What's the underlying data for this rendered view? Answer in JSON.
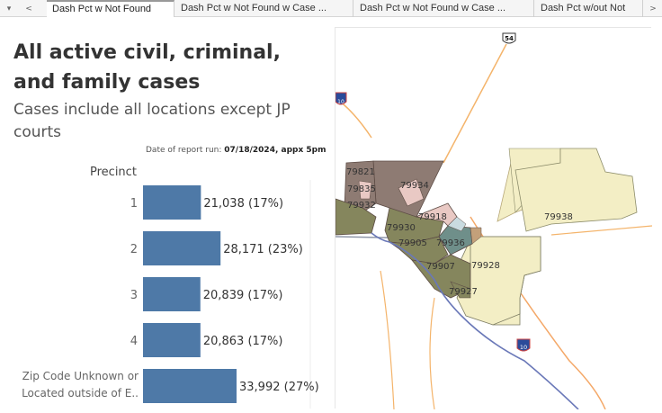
{
  "tabs": {
    "nav_down": "▾",
    "nav_prev": "<",
    "nav_next": ">",
    "items": [
      {
        "label": "Dash Pct w Not Found"
      },
      {
        "label": "Dash Pct w Not Found w Case ..."
      },
      {
        "label": "Dash Pct w Not Found w Case ..."
      },
      {
        "label": "Dash Pct w/out Not"
      }
    ]
  },
  "title": "All active civil, criminal, and family cases",
  "subtitle": "Cases include all locations except JP courts",
  "report_run_label": "Date of report run:",
  "report_run_value": "07/18/2024, appx 5pm",
  "chart_data": {
    "type": "bar",
    "orientation": "horizontal",
    "ylabel": "Precinct",
    "categories": [
      "1",
      "2",
      "3",
      "4",
      "Zip Code Unknown or Located outside of E.."
    ],
    "values": [
      21038,
      28171,
      20839,
      20863,
      33992
    ],
    "data_labels": [
      "21,038 (17%)",
      "28,171 (23%)",
      "20,839 (17%)",
      "20,863 (17%)",
      "33,992 (27%)"
    ],
    "bar_color": "#4e79a7"
  },
  "map": {
    "highway_labels": [
      "54",
      "10",
      "10"
    ],
    "zip_labels": [
      "79821",
      "79835",
      "79932",
      "79934",
      "79930",
      "79918",
      "79905",
      "79936",
      "79938",
      "79907",
      "79928",
      "79927"
    ],
    "colors": {
      "yellow": "#f3eec5",
      "brown": "#8e7b73",
      "pink": "#e9c9c4",
      "olive": "#85865d",
      "teal": "#6f8f8a",
      "lightblue": "#c9dbe0",
      "road_orange": "#f4b46b",
      "river_blue": "#6a78b8"
    }
  }
}
